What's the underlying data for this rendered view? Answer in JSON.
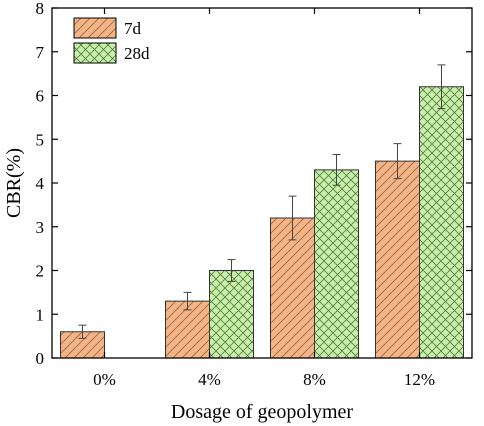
{
  "chart_data": {
    "type": "bar",
    "categories": [
      "0%",
      "4%",
      "8%",
      "12%"
    ],
    "series": [
      {
        "name": "7d",
        "values": [
          0.6,
          1.3,
          3.2,
          4.5
        ],
        "errors": [
          0.15,
          0.2,
          0.5,
          0.4
        ],
        "color": "#f4b486",
        "hatch": "diagonal"
      },
      {
        "name": "28d",
        "values": [
          null,
          2.0,
          4.3,
          6.2
        ],
        "errors": [
          null,
          0.25,
          0.35,
          0.5
        ],
        "color": "#c9f0a8",
        "hatch": "crosshatch"
      }
    ],
    "xlabel": "Dosage of geopolymer",
    "ylabel": "CBR(%)",
    "ylim": [
      0,
      8
    ],
    "yticks": [
      "0",
      "1",
      "2",
      "3",
      "4",
      "5",
      "6",
      "7",
      "8"
    ],
    "grid": false,
    "legend_position": "top-left"
  }
}
